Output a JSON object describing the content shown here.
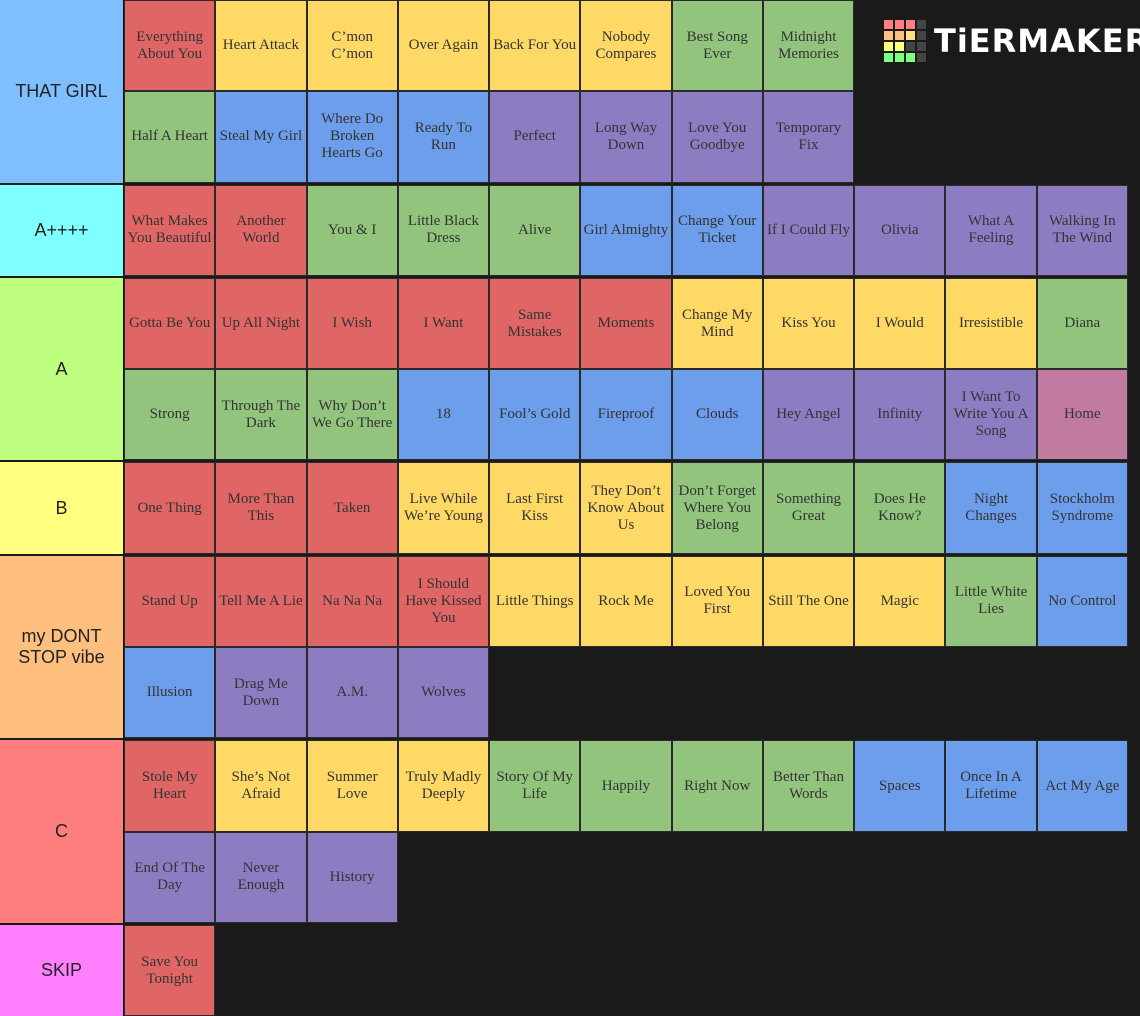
{
  "logo": "TiERMAKER",
  "tiers": [
    {
      "label": "THAT GIRL",
      "color": "#7fbfff",
      "items": [
        {
          "title": "Everything About You",
          "color": "#e06666"
        },
        {
          "title": "Heart Attack",
          "color": "#ffd966"
        },
        {
          "title": "C’mon C’mon",
          "color": "#ffd966"
        },
        {
          "title": "Over Again",
          "color": "#ffd966"
        },
        {
          "title": "Back For You",
          "color": "#ffd966"
        },
        {
          "title": "Nobody Compares",
          "color": "#ffd966"
        },
        {
          "title": "Best Song Ever",
          "color": "#93c47d"
        },
        {
          "title": "Midnight Memories",
          "color": "#93c47d"
        },
        {
          "title": "Half A Heart",
          "color": "#93c47d"
        },
        {
          "title": "Steal My Girl",
          "color": "#6d9eeb"
        },
        {
          "title": "Where Do Broken Hearts Go",
          "color": "#6d9eeb"
        },
        {
          "title": "Ready To Run",
          "color": "#6d9eeb"
        },
        {
          "title": "Perfect",
          "color": "#8e7cc3"
        },
        {
          "title": "Long Way Down",
          "color": "#8e7cc3"
        },
        {
          "title": "Love You Goodbye",
          "color": "#8e7cc3"
        },
        {
          "title": "Temporary Fix",
          "color": "#8e7cc3"
        }
      ]
    },
    {
      "label": "A++++",
      "color": "#7fffff",
      "items": [
        {
          "title": "What Makes You Beautiful",
          "color": "#e06666"
        },
        {
          "title": "Another World",
          "color": "#e06666"
        },
        {
          "title": "You & I",
          "color": "#93c47d"
        },
        {
          "title": "Little Black Dress",
          "color": "#93c47d"
        },
        {
          "title": "Alive",
          "color": "#93c47d"
        },
        {
          "title": "Girl Almighty",
          "color": "#6d9eeb"
        },
        {
          "title": "Change Your Ticket",
          "color": "#6d9eeb"
        },
        {
          "title": "If I Could Fly",
          "color": "#8e7cc3"
        },
        {
          "title": "Olivia",
          "color": "#8e7cc3"
        },
        {
          "title": "What A Feeling",
          "color": "#8e7cc3"
        },
        {
          "title": "Walking In The Wind",
          "color": "#8e7cc3"
        }
      ]
    },
    {
      "label": "A",
      "color": "#bfff7f",
      "items": [
        {
          "title": "Gotta Be You",
          "color": "#e06666"
        },
        {
          "title": "Up All Night",
          "color": "#e06666"
        },
        {
          "title": "I Wish",
          "color": "#e06666"
        },
        {
          "title": "I Want",
          "color": "#e06666"
        },
        {
          "title": "Same Mistakes",
          "color": "#e06666"
        },
        {
          "title": "Moments",
          "color": "#e06666"
        },
        {
          "title": "Change My Mind",
          "color": "#ffd966"
        },
        {
          "title": "Kiss You",
          "color": "#ffd966"
        },
        {
          "title": "I Would",
          "color": "#ffd966"
        },
        {
          "title": "Irresistible",
          "color": "#ffd966"
        },
        {
          "title": "Diana",
          "color": "#93c47d"
        },
        {
          "title": "Strong",
          "color": "#93c47d"
        },
        {
          "title": "Through The Dark",
          "color": "#93c47d"
        },
        {
          "title": "Why Don’t We Go There",
          "color": "#93c47d"
        },
        {
          "title": "18",
          "color": "#6d9eeb"
        },
        {
          "title": "Fool’s Gold",
          "color": "#6d9eeb"
        },
        {
          "title": "Fireproof",
          "color": "#6d9eeb"
        },
        {
          "title": "Clouds",
          "color": "#6d9eeb"
        },
        {
          "title": "Hey Angel",
          "color": "#8e7cc3"
        },
        {
          "title": "Infinity",
          "color": "#8e7cc3"
        },
        {
          "title": "I Want To Write You A Song",
          "color": "#8e7cc3"
        },
        {
          "title": "Home",
          "color": "#c27ba0"
        }
      ]
    },
    {
      "label": "B",
      "color": "#ffff7f",
      "items": [
        {
          "title": "One Thing",
          "color": "#e06666"
        },
        {
          "title": "More Than This",
          "color": "#e06666"
        },
        {
          "title": "Taken",
          "color": "#e06666"
        },
        {
          "title": "Live While We’re Young",
          "color": "#ffd966"
        },
        {
          "title": "Last First Kiss",
          "color": "#ffd966"
        },
        {
          "title": "They Don’t Know About Us",
          "color": "#ffd966"
        },
        {
          "title": "Don’t Forget Where You Belong",
          "color": "#93c47d"
        },
        {
          "title": "Something Great",
          "color": "#93c47d"
        },
        {
          "title": "Does He Know?",
          "color": "#93c47d"
        },
        {
          "title": "Night Changes",
          "color": "#6d9eeb"
        },
        {
          "title": "Stockholm Syndrome",
          "color": "#6d9eeb"
        }
      ]
    },
    {
      "label": "my DONT STOP vibe",
      "color": "#ffbf7f",
      "items": [
        {
          "title": "Stand Up",
          "color": "#e06666"
        },
        {
          "title": "Tell Me A Lie",
          "color": "#e06666"
        },
        {
          "title": "Na Na Na",
          "color": "#e06666"
        },
        {
          "title": "I Should Have Kissed You",
          "color": "#e06666"
        },
        {
          "title": "Little Things",
          "color": "#ffd966"
        },
        {
          "title": "Rock Me",
          "color": "#ffd966"
        },
        {
          "title": "Loved You First",
          "color": "#ffd966"
        },
        {
          "title": "Still The One",
          "color": "#ffd966"
        },
        {
          "title": "Magic",
          "color": "#ffd966"
        },
        {
          "title": "Little White Lies",
          "color": "#93c47d"
        },
        {
          "title": "No Control",
          "color": "#6d9eeb"
        },
        {
          "title": "Illusion",
          "color": "#6d9eeb"
        },
        {
          "title": "Drag Me Down",
          "color": "#8e7cc3"
        },
        {
          "title": "A.M.",
          "color": "#8e7cc3"
        },
        {
          "title": "Wolves",
          "color": "#8e7cc3"
        }
      ]
    },
    {
      "label": "C",
      "color": "#ff7f7f",
      "items": [
        {
          "title": "Stole My Heart",
          "color": "#e06666"
        },
        {
          "title": "She’s Not Afraid",
          "color": "#ffd966"
        },
        {
          "title": "Summer Love",
          "color": "#ffd966"
        },
        {
          "title": "Truly Madly Deeply",
          "color": "#ffd966"
        },
        {
          "title": "Story Of My Life",
          "color": "#93c47d"
        },
        {
          "title": "Happily",
          "color": "#93c47d"
        },
        {
          "title": "Right Now",
          "color": "#93c47d"
        },
        {
          "title": "Better Than Words",
          "color": "#93c47d"
        },
        {
          "title": "Spaces",
          "color": "#6d9eeb"
        },
        {
          "title": "Once In A Lifetime",
          "color": "#6d9eeb"
        },
        {
          "title": "Act My Age",
          "color": "#6d9eeb"
        },
        {
          "title": "End Of The Day",
          "color": "#8e7cc3"
        },
        {
          "title": "Never Enough",
          "color": "#8e7cc3"
        },
        {
          "title": "History",
          "color": "#8e7cc3"
        }
      ]
    },
    {
      "label": "SKIP",
      "color": "#ff7fff",
      "items": [
        {
          "title": "Save You Tonight",
          "color": "#e06666"
        }
      ]
    }
  ]
}
